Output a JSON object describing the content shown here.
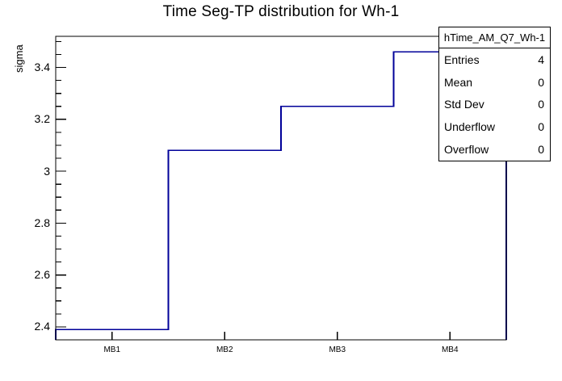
{
  "chart_data": {
    "type": "bar",
    "subtype": "step-histogram-outline",
    "title": "Time Seg-TP distribution for Wh-1",
    "xlabel": "",
    "ylabel": "sigma",
    "categories": [
      "MB1",
      "MB2",
      "MB3",
      "MB4"
    ],
    "values": [
      2.39,
      3.08,
      3.25,
      3.46
    ],
    "ylim": [
      2.35,
      3.52
    ],
    "y_major_ticks": [
      2.4,
      2.6,
      2.8,
      3.0,
      3.2,
      3.4
    ],
    "y_major_tick_labels": [
      "2.4",
      "2.6",
      "2.8",
      "3",
      "3.2",
      "3.4"
    ],
    "y_minor_tick_step": 0.05,
    "grid": false,
    "legend_position": "none",
    "line_color": "#000099",
    "frame_color": "#000000",
    "background_color": "#ffffff"
  },
  "stats_box": {
    "header": "hTime_AM_Q7_Wh-1",
    "rows": [
      {
        "label": "Entries",
        "value": "4"
      },
      {
        "label": "Mean",
        "value": "0"
      },
      {
        "label": "Std Dev",
        "value": "0"
      },
      {
        "label": "Underflow",
        "value": "0"
      },
      {
        "label": "Overflow",
        "value": "0"
      }
    ]
  }
}
